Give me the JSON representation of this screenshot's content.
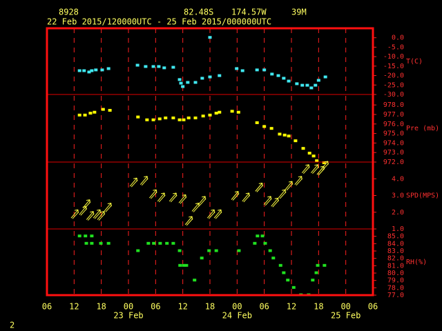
{
  "header": {
    "station": "8928",
    "latitude": "82.48S",
    "longitude": "174.57W",
    "elevation": "39M",
    "period": "22 Feb 2015/120000UTC - 25 Feb 2015/000000UTC",
    "page": "2"
  },
  "x_axis": {
    "xlim": [
      0,
      72
    ],
    "xticks": [
      {
        "value": 0,
        "label": "06"
      },
      {
        "value": 6,
        "label": "12"
      },
      {
        "value": 12,
        "label": "18"
      },
      {
        "value": 18,
        "label": "00"
      },
      {
        "value": 24,
        "label": "06"
      },
      {
        "value": 30,
        "label": "12"
      },
      {
        "value": 36,
        "label": "18"
      },
      {
        "value": 42,
        "label": "00"
      },
      {
        "value": 48,
        "label": "06"
      },
      {
        "value": 54,
        "label": "12"
      },
      {
        "value": 60,
        "label": "18"
      },
      {
        "value": 66,
        "label": "00"
      },
      {
        "value": 72,
        "label": "06"
      }
    ],
    "date_labels": [
      {
        "value": 18,
        "label": "23 Feb"
      },
      {
        "value": 42,
        "label": "24 Feb"
      },
      {
        "value": 66,
        "label": "25 Feb"
      }
    ]
  },
  "chart_data": [
    {
      "type": "scatter",
      "ylabel": "T(C)",
      "color": "#40e8f0",
      "ylim": [
        -30,
        5
      ],
      "yticks": [
        {
          "value": 0,
          "label": "0.0"
        },
        {
          "value": -5,
          "label": "-5.0"
        },
        {
          "value": -10,
          "label": "-10.0"
        },
        {
          "value": -15,
          "label": "-15.0"
        },
        {
          "value": -20,
          "label": "-20.0"
        },
        {
          "value": -25,
          "label": "-25.0"
        },
        {
          "value": -30,
          "label": "-30.0"
        }
      ],
      "x": [
        7.2,
        8.2,
        9.3,
        9.9,
        10.8,
        12.2,
        13.6,
        20,
        21.8,
        23.5,
        24.7,
        25.9,
        27.9,
        29.3,
        29.6,
        30,
        31.1,
        32.8,
        34.3,
        36,
        36,
        38.1,
        41.9,
        43.2,
        46.4,
        48,
        49.7,
        51.1,
        52.3,
        53.4,
        55.2,
        56.4,
        57.5,
        58.4,
        59.3,
        60,
        61.5
      ],
      "values": [
        -17.6,
        -17.6,
        -18.3,
        -17.6,
        -17.2,
        -17.2,
        -16.5,
        -14.7,
        -15.4,
        -15.4,
        -15.4,
        -16.1,
        -15.8,
        -22.3,
        -24.2,
        -26,
        -23.8,
        -23.8,
        -21.6,
        -20.9,
        0,
        -20.2,
        -16.5,
        -17.6,
        -17.2,
        -17.2,
        -19.4,
        -20.2,
        -21.6,
        -23.1,
        -24.5,
        -25.3,
        -25.3,
        -26.7,
        -25.3,
        -22.7,
        -20.9
      ]
    },
    {
      "type": "scatter",
      "ylabel": "Pre (mb)",
      "color": "#ffff00",
      "ylim": [
        972,
        979.1
      ],
      "yticks": [
        {
          "value": 978,
          "label": "978.0"
        },
        {
          "value": 977,
          "label": "977.0"
        },
        {
          "value": 976,
          "label": "976.0"
        },
        {
          "value": 975,
          "label": "975.0"
        },
        {
          "value": 974,
          "label": "974.0"
        },
        {
          "value": 973,
          "label": "973.0"
        },
        {
          "value": 972,
          "label": "972.0"
        }
      ],
      "x": [
        7.2,
        8.4,
        9.6,
        10.5,
        12.4,
        13.9,
        20.1,
        22.1,
        23.5,
        24.9,
        26.2,
        27.9,
        29.3,
        30.2,
        31.3,
        32.8,
        34.5,
        36,
        37.4,
        38.1,
        40.9,
        42.3,
        46.4,
        48,
        49.6,
        51.4,
        52.5,
        53.4,
        54.9,
        56.6,
        58,
        58.9,
        59.6,
        61.2
      ],
      "values": [
        976.9,
        976.9,
        977.1,
        977.2,
        977.5,
        977.4,
        976.7,
        976.4,
        976.4,
        976.5,
        976.6,
        976.6,
        976.4,
        976.4,
        976.6,
        976.6,
        976.8,
        976.9,
        977.1,
        977.2,
        977.3,
        977.2,
        976.1,
        975.7,
        975.5,
        974.9,
        974.8,
        974.7,
        974.2,
        973.4,
        972.9,
        972.6,
        972.1,
        971.9
      ]
    },
    {
      "type": "wind",
      "ylabel": "SPD(MPS)",
      "color": "#ffff40",
      "ylim": [
        1,
        5
      ],
      "yticks": [
        {
          "value": 4,
          "label": "4.0"
        },
        {
          "value": 3,
          "label": "3.0"
        },
        {
          "value": 2,
          "label": "2.0"
        },
        {
          "value": 1,
          "label": "1.0"
        }
      ],
      "x": [
        6.1,
        7.9,
        8.7,
        9.5,
        11,
        11.9,
        13.4,
        19.1,
        21.4,
        23.4,
        25.2,
        27.8,
        29.9,
        31.3,
        32.8,
        34.2,
        36.2,
        37.7,
        41.5,
        43.9,
        46.8,
        48.7,
        50.3,
        51.9,
        53.4,
        55.5,
        57.1,
        59.1,
        60.4,
        61.3
      ],
      "values": [
        1.9,
        2.1,
        2.5,
        1.8,
        1.9,
        1.8,
        2.3,
        3.8,
        3.9,
        3.1,
        2.9,
        2.9,
        2.8,
        1.5,
        2.3,
        2.7,
        1.9,
        1.9,
        3,
        2.9,
        3.5,
        2.7,
        2.6,
        3.1,
        3.6,
        3.9,
        4.6,
        4.6,
        4.5,
        4.8
      ]
    },
    {
      "type": "scatter",
      "ylabel": "RH(%)",
      "color": "#20e020",
      "ylim": [
        77,
        86
      ],
      "yticks": [
        {
          "value": 85,
          "label": "85.0"
        },
        {
          "value": 84,
          "label": "84.0"
        },
        {
          "value": 83,
          "label": "83.0"
        },
        {
          "value": 82,
          "label": "82.0"
        },
        {
          "value": 81,
          "label": "81.0"
        },
        {
          "value": 80,
          "label": "80.0"
        },
        {
          "value": 79,
          "label": "79.0"
        },
        {
          "value": 78,
          "label": "78.0"
        },
        {
          "value": 77,
          "label": "77.0"
        }
      ],
      "x": [
        7.2,
        8.5,
        9.9,
        8.7,
        9.9,
        11.9,
        13.6,
        20.1,
        22.4,
        23.6,
        25,
        26.5,
        27.9,
        29.3,
        29.4,
        30.2,
        30.8,
        32.6,
        34.2,
        35.8,
        37.4,
        42.4,
        45.9,
        46.5,
        47.6,
        48.2,
        49.3,
        50,
        51.6,
        52.3,
        53.2,
        54.5,
        56.1,
        57.8,
        58.7,
        59.5,
        59.8,
        61.3
      ],
      "values": [
        85,
        85,
        85,
        84,
        84,
        84,
        84,
        83,
        84,
        84,
        84,
        84,
        84,
        83,
        81,
        81,
        81,
        79,
        82,
        83,
        83,
        83,
        84,
        85,
        85,
        84,
        83,
        82,
        81,
        80,
        79,
        78,
        77,
        77,
        79,
        80,
        81,
        81
      ]
    }
  ]
}
